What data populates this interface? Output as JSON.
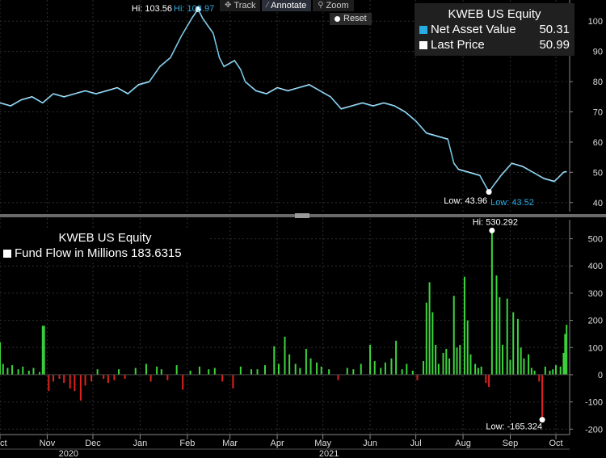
{
  "toolbar": {
    "track_label": "Track",
    "annotate_label": "Annotate",
    "zoom_label": "Zoom",
    "reset_label": "Reset"
  },
  "top_legend": {
    "title": "KWEB US Equity",
    "items": [
      {
        "label": "Net Asset Value",
        "value": "50.31",
        "color": "#29abe2"
      },
      {
        "label": "Last Price",
        "value": "50.99",
        "color": "#ffffff"
      }
    ]
  },
  "bottom_legend": {
    "title": "KWEB US Equity",
    "items": [
      {
        "label": "Fund Flow in Millions",
        "value": "183.6315",
        "color": "#ffffff"
      }
    ]
  },
  "chart_data": [
    {
      "type": "line",
      "title": "KWEB US Equity",
      "x_range": [
        "2020-10-01",
        "2021-10-10"
      ],
      "ylim": [
        37,
        107
      ],
      "y_ticks": [
        40,
        50,
        60,
        70,
        80,
        90,
        100
      ],
      "series": [
        {
          "name": "Net Asset Value",
          "color": "#29abe2",
          "last": 50.31
        },
        {
          "name": "Last Price",
          "color": "#ffffff",
          "last": 50.99
        }
      ],
      "points": [
        [
          "2020-10-01",
          73
        ],
        [
          "2020-10-08",
          72
        ],
        [
          "2020-10-15",
          74
        ],
        [
          "2020-10-22",
          75
        ],
        [
          "2020-10-29",
          73
        ],
        [
          "2020-11-05",
          76
        ],
        [
          "2020-11-12",
          75
        ],
        [
          "2020-11-19",
          76
        ],
        [
          "2020-11-26",
          77
        ],
        [
          "2020-12-03",
          76
        ],
        [
          "2020-12-10",
          77
        ],
        [
          "2020-12-17",
          78
        ],
        [
          "2020-12-24",
          76
        ],
        [
          "2020-12-31",
          79
        ],
        [
          "2021-01-07",
          80
        ],
        [
          "2021-01-14",
          85
        ],
        [
          "2021-01-21",
          88
        ],
        [
          "2021-01-28",
          95
        ],
        [
          "2021-02-04",
          101
        ],
        [
          "2021-02-08",
          103.97
        ],
        [
          "2021-02-11",
          101
        ],
        [
          "2021-02-18",
          96
        ],
        [
          "2021-02-22",
          88
        ],
        [
          "2021-02-25",
          85
        ],
        [
          "2021-03-04",
          87
        ],
        [
          "2021-03-08",
          84
        ],
        [
          "2021-03-11",
          80
        ],
        [
          "2021-03-18",
          77
        ],
        [
          "2021-03-25",
          76
        ],
        [
          "2021-04-01",
          78
        ],
        [
          "2021-04-08",
          77
        ],
        [
          "2021-04-15",
          78
        ],
        [
          "2021-04-22",
          79
        ],
        [
          "2021-04-29",
          77
        ],
        [
          "2021-05-06",
          75
        ],
        [
          "2021-05-13",
          71
        ],
        [
          "2021-05-20",
          72
        ],
        [
          "2021-05-27",
          73
        ],
        [
          "2021-06-03",
          72
        ],
        [
          "2021-06-10",
          73
        ],
        [
          "2021-06-17",
          72
        ],
        [
          "2021-06-24",
          70
        ],
        [
          "2021-07-01",
          67
        ],
        [
          "2021-07-08",
          63
        ],
        [
          "2021-07-15",
          62
        ],
        [
          "2021-07-22",
          61
        ],
        [
          "2021-07-26",
          53
        ],
        [
          "2021-07-29",
          51
        ],
        [
          "2021-08-05",
          50
        ],
        [
          "2021-08-12",
          49
        ],
        [
          "2021-08-18",
          43.52
        ],
        [
          "2021-08-20",
          45
        ],
        [
          "2021-08-26",
          49
        ],
        [
          "2021-09-02",
          53
        ],
        [
          "2021-09-09",
          52
        ],
        [
          "2021-09-16",
          50
        ],
        [
          "2021-09-23",
          48
        ],
        [
          "2021-09-30",
          47
        ],
        [
          "2021-10-06",
          50
        ],
        [
          "2021-10-08",
          50.3
        ]
      ],
      "annotations": [
        {
          "text": "Hi: 103.56",
          "color": "#ffffff"
        },
        {
          "text": "Hi: 103.97",
          "color": "#29abe2"
        },
        {
          "text": "Low: 43.96",
          "color": "#ffffff"
        },
        {
          "text": "Low: 43.52",
          "color": "#29abe2"
        }
      ]
    },
    {
      "type": "bar",
      "title": "KWEB US Equity",
      "x_range": [
        "2020-10-01",
        "2021-10-10"
      ],
      "ylim": [
        -220,
        570
      ],
      "y_ticks": [
        -200,
        -100,
        0,
        100,
        200,
        300,
        400,
        500
      ],
      "series": [
        {
          "name": "Fund Flow in Millions",
          "last": 183.6315
        }
      ],
      "colors": {
        "positive": "#3dd43d",
        "negative": "#e02020"
      },
      "bars": [
        [
          "2020-10-01",
          120
        ],
        [
          "2020-10-03",
          40
        ],
        [
          "2020-10-06",
          25
        ],
        [
          "2020-10-09",
          35
        ],
        [
          "2020-10-13",
          20
        ],
        [
          "2020-10-16",
          30
        ],
        [
          "2020-10-20",
          15
        ],
        [
          "2020-10-23",
          25
        ],
        [
          "2020-10-27",
          10
        ],
        [
          "2020-10-29",
          180
        ],
        [
          "2020-10-30",
          180
        ],
        [
          "2020-11-02",
          -60
        ],
        [
          "2020-11-05",
          -25
        ],
        [
          "2020-11-09",
          -15
        ],
        [
          "2020-11-12",
          -30
        ],
        [
          "2020-11-16",
          -50
        ],
        [
          "2020-11-19",
          -60
        ],
        [
          "2020-11-23",
          -95
        ],
        [
          "2020-11-26",
          -40
        ],
        [
          "2020-11-30",
          -25
        ],
        [
          "2020-12-04",
          20
        ],
        [
          "2020-12-08",
          -15
        ],
        [
          "2020-12-11",
          -30
        ],
        [
          "2020-12-15",
          -20
        ],
        [
          "2020-12-18",
          20
        ],
        [
          "2020-12-22",
          -15
        ],
        [
          "2020-12-29",
          25
        ],
        [
          "2021-01-05",
          40
        ],
        [
          "2021-01-08",
          -25
        ],
        [
          "2021-01-12",
          30
        ],
        [
          "2021-01-15",
          20
        ],
        [
          "2021-01-19",
          -20
        ],
        [
          "2021-01-25",
          35
        ],
        [
          "2021-01-29",
          -55
        ],
        [
          "2021-02-03",
          15
        ],
        [
          "2021-02-09",
          30
        ],
        [
          "2021-02-15",
          20
        ],
        [
          "2021-02-19",
          25
        ],
        [
          "2021-02-24",
          -25
        ],
        [
          "2021-03-03",
          -50
        ],
        [
          "2021-03-08",
          30
        ],
        [
          "2021-03-15",
          20
        ],
        [
          "2021-03-19",
          20
        ],
        [
          "2021-03-24",
          35
        ],
        [
          "2021-03-30",
          105
        ],
        [
          "2021-04-02",
          40
        ],
        [
          "2021-04-06",
          140
        ],
        [
          "2021-04-09",
          75
        ],
        [
          "2021-04-13",
          40
        ],
        [
          "2021-04-16",
          25
        ],
        [
          "2021-04-20",
          95
        ],
        [
          "2021-04-23",
          60
        ],
        [
          "2021-04-27",
          45
        ],
        [
          "2021-04-30",
          30
        ],
        [
          "2021-05-05",
          20
        ],
        [
          "2021-05-11",
          -20
        ],
        [
          "2021-05-17",
          25
        ],
        [
          "2021-05-21",
          20
        ],
        [
          "2021-05-26",
          40
        ],
        [
          "2021-06-01",
          110
        ],
        [
          "2021-06-04",
          50
        ],
        [
          "2021-06-08",
          25
        ],
        [
          "2021-06-11",
          45
        ],
        [
          "2021-06-15",
          60
        ],
        [
          "2021-06-18",
          125
        ],
        [
          "2021-06-22",
          20
        ],
        [
          "2021-06-25",
          40
        ],
        [
          "2021-06-29",
          15
        ],
        [
          "2021-07-02",
          -20
        ],
        [
          "2021-07-06",
          50
        ],
        [
          "2021-07-08",
          265
        ],
        [
          "2021-07-10",
          340
        ],
        [
          "2021-07-12",
          230
        ],
        [
          "2021-07-14",
          110
        ],
        [
          "2021-07-16",
          40
        ],
        [
          "2021-07-19",
          80
        ],
        [
          "2021-07-21",
          95
        ],
        [
          "2021-07-23",
          60
        ],
        [
          "2021-07-26",
          290
        ],
        [
          "2021-07-28",
          100
        ],
        [
          "2021-07-30",
          110
        ],
        [
          "2021-08-02",
          360
        ],
        [
          "2021-08-04",
          200
        ],
        [
          "2021-08-06",
          75
        ],
        [
          "2021-08-09",
          40
        ],
        [
          "2021-08-11",
          25
        ],
        [
          "2021-08-13",
          30
        ],
        [
          "2021-08-16",
          -30
        ],
        [
          "2021-08-18",
          -45
        ],
        [
          "2021-08-20",
          530.292
        ],
        [
          "2021-08-23",
          365
        ],
        [
          "2021-08-25",
          285
        ],
        [
          "2021-08-27",
          110
        ],
        [
          "2021-08-30",
          280
        ],
        [
          "2021-09-01",
          55
        ],
        [
          "2021-09-03",
          230
        ],
        [
          "2021-09-06",
          205
        ],
        [
          "2021-09-08",
          100
        ],
        [
          "2021-09-10",
          60
        ],
        [
          "2021-09-13",
          75
        ],
        [
          "2021-09-15",
          25
        ],
        [
          "2021-09-17",
          15
        ],
        [
          "2021-09-20",
          -25
        ],
        [
          "2021-09-22",
          -165.324
        ],
        [
          "2021-09-24",
          30
        ],
        [
          "2021-09-27",
          15
        ],
        [
          "2021-09-29",
          20
        ],
        [
          "2021-10-01",
          35
        ],
        [
          "2021-10-04",
          30
        ],
        [
          "2021-10-06",
          80
        ],
        [
          "2021-10-07",
          150
        ],
        [
          "2021-10-08",
          183.6315
        ]
      ],
      "annotations": [
        {
          "text": "Hi: 530.292"
        },
        {
          "text": "Low: -165.324"
        }
      ]
    }
  ],
  "x_axis": {
    "months": [
      {
        "label": "Oct",
        "date": "2020-10-01"
      },
      {
        "label": "Nov",
        "date": "2020-11-01"
      },
      {
        "label": "Dec",
        "date": "2020-12-01"
      },
      {
        "label": "Jan",
        "date": "2021-01-01"
      },
      {
        "label": "Feb",
        "date": "2021-02-01"
      },
      {
        "label": "Mar",
        "date": "2021-03-01"
      },
      {
        "label": "Apr",
        "date": "2021-04-01"
      },
      {
        "label": "May",
        "date": "2021-05-01"
      },
      {
        "label": "Jun",
        "date": "2021-06-01"
      },
      {
        "label": "Jul",
        "date": "2021-07-01"
      },
      {
        "label": "Aug",
        "date": "2021-08-01"
      },
      {
        "label": "Sep",
        "date": "2021-09-01"
      },
      {
        "label": "Oct",
        "date": "2021-10-01"
      }
    ],
    "years": [
      {
        "label": "2020",
        "date": "2020-11-15"
      },
      {
        "label": "2021",
        "date": "2021-05-05"
      }
    ]
  }
}
